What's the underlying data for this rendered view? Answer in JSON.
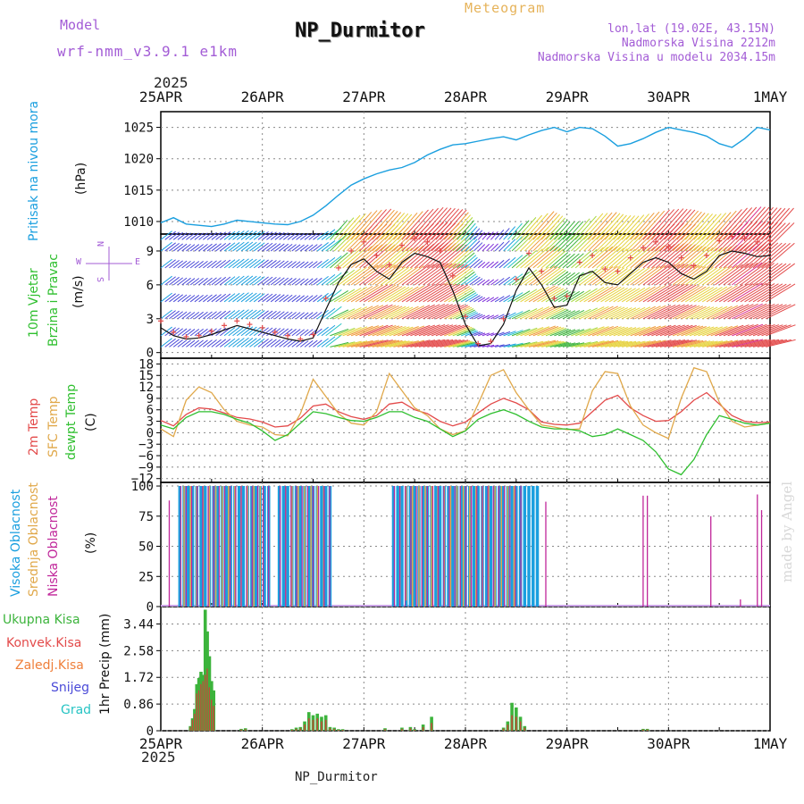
{
  "header": {
    "model_label": "Model",
    "model_name": "wrf-nmm_v3.9.1  e1km",
    "chart_kind": "Meteogram",
    "station": "NP_Durmitor",
    "lonlat": "lon,lat (19.02E, 43.15N)",
    "elevation": "Nadmorska Visina 2212m",
    "model_elevation": "Nadmorska Visina u modelu 2034.15m",
    "year_top": "2025",
    "year_bottom": "2025",
    "footer_station": "NP_Durmitor",
    "watermark": "made by Angel"
  },
  "colors": {
    "pressure": "#1a9fdf",
    "temp2m": "#e34a4a",
    "sfc": "#e0a84a",
    "dew": "#2fbf2f",
    "high_cloud": "#1a9fdf",
    "mid_cloud": "#e0a84a",
    "low_cloud": "#c0269a",
    "total_precip": "#3cb43c",
    "conv_precip": "#c44a3a",
    "frz_precip": "#ef7f3a",
    "snow": "#4a4ad8",
    "hail": "#27c4c4",
    "model_text": "#a35cd6",
    "chart_kind_text": "#e6b35a"
  },
  "chart_data": [
    {
      "type": "line",
      "panel": "pressure",
      "ylabel_main": "Pritisak na nivou mora",
      "ylabel_unit": "(hPa)",
      "x_ticks": [
        "25APR",
        "26APR",
        "27APR",
        "28APR",
        "29APR",
        "30APR",
        "1MAY"
      ],
      "x_range": [
        0,
        144
      ],
      "x_unit": "hours from 25APR 00Z",
      "ylim": [
        1008,
        1027.5
      ],
      "y_ticks": [
        "1010",
        "1015",
        "1020",
        "1025"
      ],
      "grid": true,
      "x": [
        0,
        3,
        6,
        9,
        12,
        15,
        18,
        21,
        24,
        27,
        30,
        33,
        36,
        39,
        42,
        45,
        48,
        51,
        54,
        57,
        60,
        63,
        66,
        69,
        72,
        75,
        78,
        81,
        84,
        87,
        90,
        93,
        96,
        99,
        102,
        105,
        108,
        111,
        114,
        117,
        120,
        123,
        126,
        129,
        132,
        135,
        138,
        141,
        144
      ],
      "values": [
        1009.8,
        1010.6,
        1009.6,
        1009.4,
        1009.2,
        1009.6,
        1010.2,
        1010.0,
        1009.8,
        1009.6,
        1009.5,
        1010.0,
        1011.0,
        1012.5,
        1014.2,
        1015.8,
        1016.8,
        1017.6,
        1018.2,
        1018.6,
        1019.4,
        1020.6,
        1021.5,
        1022.2,
        1022.4,
        1022.8,
        1023.2,
        1023.5,
        1023.0,
        1023.8,
        1024.5,
        1025.0,
        1024.3,
        1025.0,
        1024.8,
        1023.6,
        1022.0,
        1022.4,
        1023.2,
        1024.2,
        1025.0,
        1024.6,
        1024.2,
        1023.6,
        1022.4,
        1021.8,
        1023.2,
        1025.0,
        1024.6
      ],
      "series_names": []
    },
    {
      "type": "line",
      "panel": "wind",
      "ylabel_main": "10m Vjetar",
      "ylabel_sub": "Brzina i Pravac",
      "ylabel_unit": "(m/s)",
      "compass": {
        "n": "N",
        "s": "S",
        "e": "E",
        "w": "W"
      },
      "ylim": [
        -0.5,
        10.5
      ],
      "y_ticks": [
        "0",
        "3",
        "6",
        "9"
      ],
      "x_range": [
        0,
        144
      ],
      "grid": true,
      "x": [
        0,
        3,
        6,
        9,
        12,
        15,
        18,
        21,
        24,
        27,
        30,
        33,
        36,
        39,
        42,
        45,
        48,
        51,
        54,
        57,
        60,
        63,
        66,
        69,
        72,
        75,
        78,
        81,
        84,
        87,
        90,
        93,
        96,
        99,
        102,
        105,
        108,
        111,
        114,
        117,
        120,
        123,
        126,
        129,
        132,
        135,
        138,
        141,
        144
      ],
      "speed": [
        2.2,
        1.5,
        1.2,
        1.3,
        1.6,
        2.0,
        2.4,
        2.1,
        1.8,
        1.5,
        1.2,
        1.0,
        1.3,
        3.8,
        6.2,
        7.8,
        8.3,
        7.2,
        6.5,
        8.0,
        8.8,
        8.5,
        8.0,
        5.5,
        2.5,
        0.6,
        0.8,
        2.5,
        5.5,
        7.5,
        6.0,
        4.0,
        4.2,
        6.8,
        7.2,
        6.2,
        6.0,
        7.0,
        8.0,
        8.4,
        8.0,
        7.0,
        6.5,
        7.2,
        8.6,
        9.0,
        8.8,
        8.5,
        8.6
      ],
      "gust": [
        2.8,
        1.8,
        1.4,
        1.5,
        1.9,
        2.4,
        2.8,
        2.5,
        2.2,
        1.8,
        1.5,
        1.2,
        1.6,
        4.8,
        7.5,
        9.0,
        9.8,
        8.6,
        7.8,
        9.5,
        10.1,
        9.8,
        9.0,
        6.8,
        3.2,
        0.8,
        1.0,
        3.0,
        6.5,
        8.8,
        7.2,
        4.8,
        5.0,
        8.0,
        8.6,
        7.4,
        7.2,
        8.4,
        9.3,
        9.8,
        9.4,
        8.4,
        7.7,
        8.6,
        9.9,
        10.3,
        10.1,
        9.8,
        9.9
      ],
      "series_names": []
    },
    {
      "type": "line",
      "panel": "temperature",
      "ylabel_lines": [
        "2m Temp",
        "SFC Temp",
        "dewpt Temp"
      ],
      "ylabel_unit": "(C)",
      "ylim": [
        -13,
        19.5
      ],
      "y_ticks": [
        "18",
        "15",
        "12",
        "9",
        "6",
        "3",
        "0",
        "−3",
        "−6",
        "−9",
        "−12"
      ],
      "x_range": [
        0,
        144
      ],
      "grid": true,
      "x": [
        0,
        3,
        6,
        9,
        12,
        15,
        18,
        21,
        24,
        27,
        30,
        33,
        36,
        39,
        42,
        45,
        48,
        51,
        54,
        57,
        60,
        63,
        66,
        69,
        72,
        75,
        78,
        81,
        84,
        87,
        90,
        93,
        96,
        99,
        102,
        105,
        108,
        111,
        114,
        117,
        120,
        123,
        126,
        129,
        132,
        135,
        138,
        141,
        144
      ],
      "series": [
        {
          "name": "2m Temp",
          "values": [
            3.2,
            1.8,
            4.8,
            6.5,
            6.2,
            5.2,
            4.0,
            3.6,
            2.8,
            1.5,
            1.8,
            3.8,
            7.0,
            7.5,
            5.5,
            4.2,
            3.5,
            4.5,
            7.5,
            8.0,
            6.0,
            5.0,
            3.0,
            1.8,
            2.8,
            5.2,
            7.5,
            9.0,
            7.8,
            6.0,
            2.8,
            2.2,
            2.0,
            2.5,
            5.5,
            8.5,
            9.8,
            6.5,
            4.5,
            3.0,
            3.2,
            5.5,
            8.5,
            10.5,
            7.5,
            4.5,
            3.0,
            2.6,
            2.8
          ]
        },
        {
          "name": "SFC Temp",
          "values": [
            1.0,
            -1.0,
            8.5,
            12.0,
            10.5,
            6.0,
            3.0,
            2.0,
            1.5,
            -0.5,
            -0.8,
            5.0,
            14.0,
            9.5,
            5.0,
            2.5,
            2.0,
            5.5,
            15.5,
            11.0,
            6.5,
            4.5,
            1.0,
            -0.5,
            0.5,
            7.5,
            15.0,
            16.5,
            10.5,
            6.0,
            2.0,
            1.5,
            0.8,
            1.0,
            11.0,
            16.0,
            15.5,
            7.0,
            2.0,
            0.0,
            -1.5,
            9.0,
            17.0,
            16.0,
            8.0,
            3.0,
            1.5,
            2.0,
            2.5
          ]
        },
        {
          "name": "dewpt Temp",
          "values": [
            2.0,
            1.0,
            4.0,
            5.5,
            5.5,
            4.8,
            3.5,
            2.5,
            0.5,
            -2.0,
            -0.5,
            2.5,
            5.5,
            5.0,
            4.0,
            3.2,
            3.0,
            4.0,
            5.5,
            5.5,
            4.0,
            3.0,
            1.0,
            -1.0,
            0.5,
            3.5,
            5.0,
            6.0,
            4.8,
            3.0,
            1.5,
            1.0,
            1.0,
            0.5,
            -1.0,
            -0.5,
            1.0,
            -0.5,
            -2.0,
            -5.0,
            -9.5,
            -11.0,
            -7.0,
            -0.5,
            4.5,
            3.5,
            2.5,
            2.0,
            2.5
          ]
        }
      ]
    },
    {
      "type": "bar",
      "panel": "cloud",
      "ylabel_lines": [
        "Visoka Oblacnost",
        "Srednja Oblacnost",
        "Niska Oblacnost"
      ],
      "ylabel_unit": "(%)",
      "ylim": [
        0,
        103
      ],
      "y_ticks": [
        "0",
        "25",
        "50",
        "75",
        "100"
      ],
      "x_range": [
        0,
        144
      ],
      "grid": true,
      "high_segments": [
        [
          4.5,
          25.5
        ],
        [
          28,
          40
        ],
        [
          55,
          89
        ]
      ],
      "low_segments": [
        [
          4.5,
          25.5
        ],
        [
          28,
          40
        ],
        [
          55,
          85
        ]
      ],
      "mid_segments": [
        [
          5,
          24
        ],
        [
          29,
          39
        ],
        [
          56,
          84
        ]
      ],
      "isolated": [
        {
          "x": 2,
          "value": 88,
          "kind": "low"
        },
        {
          "x": 59,
          "value": 10,
          "kind": "high"
        },
        {
          "x": 58,
          "value": 5,
          "kind": "high"
        },
        {
          "x": 91,
          "value": 87,
          "kind": "low"
        },
        {
          "x": 114,
          "value": 92,
          "kind": "low"
        },
        {
          "x": 115,
          "value": 92,
          "kind": "low"
        },
        {
          "x": 130,
          "value": 75,
          "kind": "low"
        },
        {
          "x": 137,
          "value": 6,
          "kind": "low"
        },
        {
          "x": 141,
          "value": 93,
          "kind": "low"
        },
        {
          "x": 142,
          "value": 80,
          "kind": "low"
        }
      ],
      "series_names": []
    },
    {
      "type": "bar",
      "panel": "precip",
      "ylabel_unit": "1hr Precip (mm)",
      "legend": [
        "Ukupna Kisa",
        "Konvek.Kisa",
        "Zaledj.Kisa",
        "Snijeg",
        "Grad"
      ],
      "ylim": [
        0,
        4.0
      ],
      "y_ticks": [
        "0",
        "0.86",
        "1.72",
        "2.58",
        "3.44"
      ],
      "x_ticks": [
        "25APR",
        "26APR",
        "27APR",
        "28APR",
        "29APR",
        "30APR",
        "1MAY"
      ],
      "x_range": [
        0,
        144
      ],
      "grid": true,
      "bars": [
        {
          "x": 7,
          "total": 0.15,
          "conv": 0.12
        },
        {
          "x": 7.5,
          "total": 0.4,
          "conv": 0.35
        },
        {
          "x": 8,
          "total": 0.7,
          "conv": 0.55
        },
        {
          "x": 8.5,
          "total": 1.5,
          "conv": 1.2
        },
        {
          "x": 9,
          "total": 1.7,
          "conv": 1.3
        },
        {
          "x": 9.5,
          "total": 1.9,
          "conv": 1.5
        },
        {
          "x": 10,
          "total": 1.8,
          "conv": 1.6
        },
        {
          "x": 10.5,
          "total": 3.9,
          "conv": 1.8
        },
        {
          "x": 11,
          "total": 3.2,
          "conv": 2.0
        },
        {
          "x": 11.5,
          "total": 2.4,
          "conv": 1.4
        },
        {
          "x": 12,
          "total": 1.6,
          "conv": 1.0
        },
        {
          "x": 12.5,
          "total": 1.3,
          "conv": 0.8
        },
        {
          "x": 19,
          "total": 0.06,
          "conv": 0.04
        },
        {
          "x": 20,
          "total": 0.08,
          "conv": 0.05
        },
        {
          "x": 31,
          "total": 0.05,
          "conv": 0.03
        },
        {
          "x": 32,
          "total": 0.1,
          "conv": 0.06
        },
        {
          "x": 33,
          "total": 0.12,
          "conv": 0.08
        },
        {
          "x": 34,
          "total": 0.3,
          "conv": 0.2
        },
        {
          "x": 35,
          "total": 0.6,
          "conv": 0.4
        },
        {
          "x": 36,
          "total": 0.5,
          "conv": 0.35
        },
        {
          "x": 37,
          "total": 0.55,
          "conv": 0.4
        },
        {
          "x": 38,
          "total": 0.45,
          "conv": 0.3
        },
        {
          "x": 39,
          "total": 0.5,
          "conv": 0.35
        },
        {
          "x": 40,
          "total": 0.12,
          "conv": 0.08
        },
        {
          "x": 41,
          "total": 0.1,
          "conv": 0.06
        },
        {
          "x": 42,
          "total": 0.05,
          "conv": 0.03
        },
        {
          "x": 43,
          "total": 0.05,
          "conv": 0.03
        },
        {
          "x": 53,
          "total": 0.08,
          "conv": 0.05
        },
        {
          "x": 57,
          "total": 0.1,
          "conv": 0.06
        },
        {
          "x": 59,
          "total": 0.12,
          "conv": 0.08
        },
        {
          "x": 60,
          "total": 0.05,
          "conv": 0.03
        },
        {
          "x": 62,
          "total": 0.2,
          "conv": 0.12
        },
        {
          "x": 64,
          "total": 0.45,
          "conv": 0.25
        },
        {
          "x": 81,
          "total": 0.1,
          "conv": 0.07
        },
        {
          "x": 82,
          "total": 0.3,
          "conv": 0.2
        },
        {
          "x": 83,
          "total": 0.9,
          "conv": 0.5
        },
        {
          "x": 84,
          "total": 0.75,
          "conv": 0.45
        },
        {
          "x": 85,
          "total": 0.45,
          "conv": 0.3
        },
        {
          "x": 86,
          "total": 0.15,
          "conv": 0.1
        },
        {
          "x": 114,
          "total": 0.06,
          "conv": 0.04
        },
        {
          "x": 115,
          "total": 0.06,
          "conv": 0.04
        }
      ],
      "series_names": []
    }
  ]
}
